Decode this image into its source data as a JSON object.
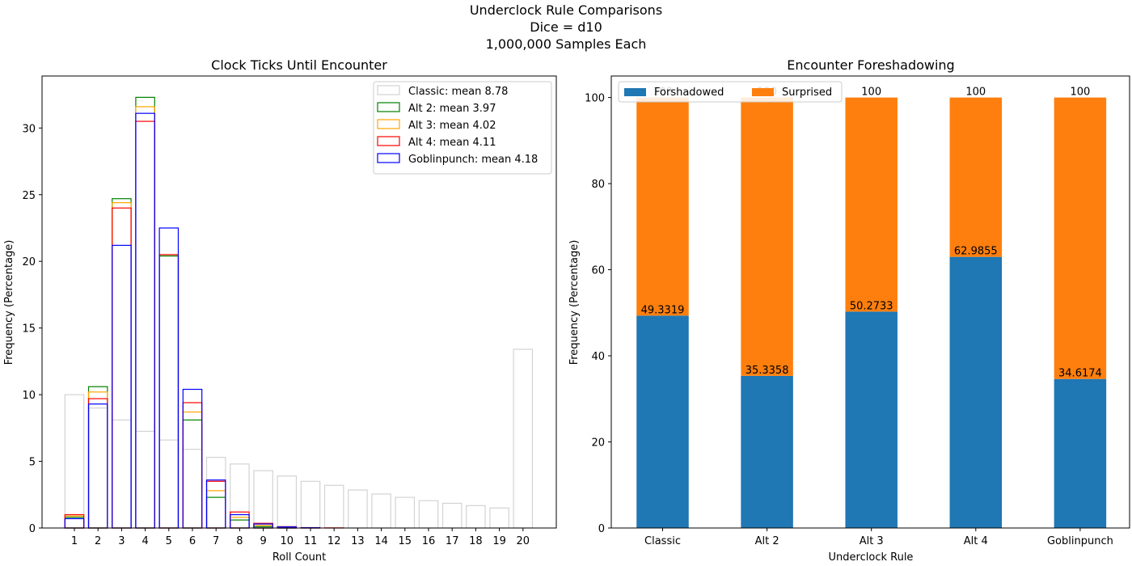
{
  "suptitle": [
    "Underclock Rule Comparisons",
    "Dice = d10",
    "1,000,000 Samples Each"
  ],
  "chart_data": [
    {
      "type": "bar",
      "style": "overlaid unfilled histogram bars",
      "title": "Clock Ticks Until Encounter",
      "xlabel": "Roll Count",
      "ylabel": "Frequency (Percentage)",
      "ylim": [
        0,
        33.9
      ],
      "yticks": [
        0,
        5,
        10,
        15,
        20,
        25,
        30
      ],
      "categories": [
        "1",
        "2",
        "3",
        "4",
        "5",
        "6",
        "7",
        "8",
        "9",
        "10",
        "11",
        "12",
        "13",
        "14",
        "15",
        "16",
        "17",
        "18",
        "19",
        "20"
      ],
      "legend_position": "top-right",
      "series": [
        {
          "name": "Classic: mean 8.78",
          "color": "#d3d3d3",
          "values": [
            10.0,
            9.0,
            8.1,
            7.25,
            6.6,
            5.9,
            5.3,
            4.8,
            4.3,
            3.9,
            3.5,
            3.2,
            2.85,
            2.55,
            2.3,
            2.05,
            1.85,
            1.68,
            1.5,
            13.4
          ]
        },
        {
          "name": "Alt 2: mean 3.97",
          "color": "#008000",
          "values": [
            0.8,
            10.6,
            24.7,
            32.3,
            20.4,
            8.1,
            2.3,
            0.6,
            0.1,
            0.02,
            0,
            0,
            0,
            0,
            0,
            0,
            0,
            0,
            0,
            0
          ]
        },
        {
          "name": "Alt 3: mean 4.02",
          "color": "#ffa500",
          "values": [
            0.9,
            10.2,
            24.4,
            31.6,
            20.5,
            8.7,
            2.8,
            0.8,
            0.2,
            0.04,
            0.01,
            0,
            0,
            0,
            0,
            0,
            0,
            0,
            0,
            0
          ]
        },
        {
          "name": "Alt 4: mean 4.11",
          "color": "#ff0000",
          "values": [
            1.0,
            9.7,
            24.0,
            30.5,
            20.5,
            9.4,
            3.5,
            1.2,
            0.35,
            0.1,
            0.03,
            0.01,
            0,
            0,
            0,
            0,
            0,
            0,
            0,
            0
          ]
        },
        {
          "name": "Goblinpunch: mean 4.18",
          "color": "#0000ff",
          "values": [
            0.7,
            9.3,
            21.2,
            31.1,
            22.5,
            10.4,
            3.6,
            1.0,
            0.3,
            0.08,
            0.02,
            0,
            0,
            0,
            0,
            0,
            0,
            0,
            0,
            0
          ]
        }
      ]
    },
    {
      "type": "bar",
      "style": "stacked",
      "title": "Encounter Foreshadowing",
      "xlabel": "Underclock Rule",
      "ylabel": "Frequency (Percentage)",
      "ylim": [
        0,
        105
      ],
      "yticks": [
        0,
        20,
        40,
        60,
        80,
        100
      ],
      "categories": [
        "Classic",
        "Alt 2",
        "Alt 3",
        "Alt 4",
        "Goblinpunch"
      ],
      "legend_position": "top-left",
      "series": [
        {
          "name": "Forshadowed",
          "color": "#1f77b4",
          "values": [
            49.3319,
            35.3358,
            50.2733,
            62.9855,
            34.6174
          ],
          "labels": [
            "49.3319",
            "35.3358",
            "50.2733",
            "62.9855",
            "34.6174"
          ]
        },
        {
          "name": "Surprised",
          "color": "#ff7f0e",
          "values": [
            50.6681,
            64.6642,
            49.7267,
            37.0145,
            65.3826
          ],
          "labels": [
            "100",
            "100",
            "100",
            "100",
            "100"
          ]
        }
      ]
    }
  ]
}
